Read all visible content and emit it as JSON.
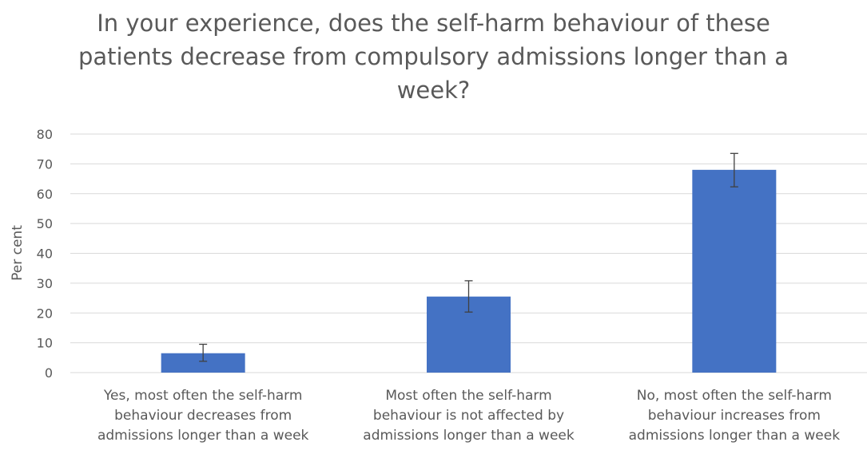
{
  "chart_data": {
    "type": "bar",
    "title": "In your experience, does the self-harm behaviour of these patients decrease from compulsory admissions longer than a week?",
    "xlabel": "",
    "ylabel": "Per cent",
    "ylim": [
      0,
      80
    ],
    "yticks": [
      0,
      10,
      20,
      30,
      40,
      50,
      60,
      70,
      80
    ],
    "grid": true,
    "legend": "none",
    "categories": [
      "Yes, most often the self-harm\nbehaviour decreases from\nadmissions longer than a week",
      "Most often the self-harm\nbehaviour is not affected by\nadmissions longer than a week",
      "No, most often the self-harm\nbehaviour increases from\nadmissions longer than a week"
    ],
    "values": [
      6.5,
      25.5,
      68
    ],
    "error_bars": [
      {
        "low": 3.8,
        "high": 9.5
      },
      {
        "low": 20.3,
        "high": 30.8
      },
      {
        "low": 62.3,
        "high": 73.5
      }
    ],
    "colors": {
      "bar": "#4472C4",
      "grid": "#D9D9D9",
      "error_bar": "#404040",
      "text": "#595959"
    }
  }
}
